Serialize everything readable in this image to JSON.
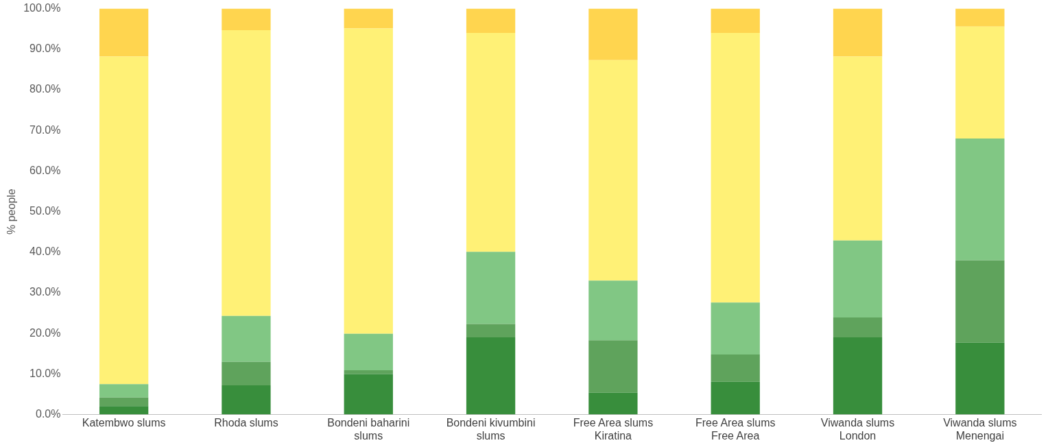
{
  "chart_data": {
    "type": "bar",
    "stacked": true,
    "ylabel": "% people",
    "legend": false,
    "grid": false,
    "categories": [
      "Katembwo slums",
      "Rhoda slums",
      "Bondeni baharini slums",
      "Bondeni kivumbini slums",
      "Free Area slums Kiratina",
      "Free Area slums Free Area",
      "Viwanda slums London",
      "Viwanda slums Menengai"
    ],
    "ylim": [
      0,
      100
    ],
    "yticks": [
      {
        "value": 0,
        "label": "0.0%"
      },
      {
        "value": 10,
        "label": "10.0%"
      },
      {
        "value": 20,
        "label": "20.0%"
      },
      {
        "value": 30,
        "label": "30.0%"
      },
      {
        "value": 40,
        "label": "40.0%"
      },
      {
        "value": 50,
        "label": "50.0%"
      },
      {
        "value": 60,
        "label": "60.0%"
      },
      {
        "value": 70,
        "label": "70.0%"
      },
      {
        "value": 80,
        "label": "80.0%"
      },
      {
        "value": 90,
        "label": "90.0%"
      },
      {
        "value": 100,
        "label": "100.0%"
      }
    ],
    "series": [
      {
        "color": "#388e3c",
        "values": [
          2.1,
          7.2,
          10.0,
          19.0,
          5.4,
          8.1,
          19.0,
          17.7
        ]
      },
      {
        "color": "#5fa35c",
        "values": [
          2.1,
          5.8,
          0.9,
          3.3,
          12.9,
          6.7,
          4.9,
          20.3
        ]
      },
      {
        "color": "#81c784",
        "values": [
          3.3,
          11.3,
          9.0,
          17.8,
          14.7,
          12.8,
          19.0,
          30.0
        ]
      },
      {
        "color": "#fff176",
        "values": [
          80.7,
          70.4,
          75.2,
          53.9,
          54.3,
          66.4,
          45.3,
          27.6
        ]
      },
      {
        "color": "#ffd54f",
        "values": [
          11.8,
          5.3,
          4.9,
          6.0,
          12.7,
          6.0,
          11.8,
          4.4
        ]
      }
    ]
  }
}
